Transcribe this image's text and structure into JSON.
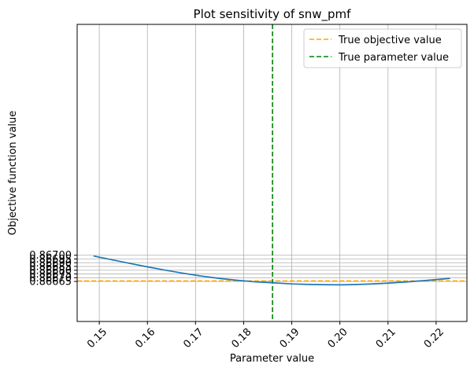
{
  "chart_data": {
    "type": "line",
    "title": "Plot sensitivity of snw_pmf",
    "xlabel": "Parameter value",
    "ylabel": "Objective function value",
    "xlim": [
      0.1454,
      0.2264
    ],
    "ylim": [
      0.866115,
      0.870085
    ],
    "grid": true,
    "legend_position": "upper-right",
    "x_ticks": [
      0.15,
      0.16,
      0.17,
      0.18,
      0.19,
      0.2,
      0.21,
      0.22
    ],
    "x_tick_labels": [
      "0.15",
      "0.16",
      "0.17",
      "0.18",
      "0.19",
      "0.20",
      "0.21",
      "0.22"
    ],
    "y_ticks": [
      0.86665,
      0.8667,
      0.86675,
      0.8668,
      0.86685,
      0.8669,
      0.86695,
      0.867
    ],
    "y_tick_labels": [
      "0.86665",
      "0.86670",
      "0.86675",
      "0.86680",
      "0.86685",
      "0.86690",
      "0.86695",
      "0.86700"
    ],
    "series": [
      {
        "color": "#1f77b4",
        "style": "solid",
        "x": [
          0.1488,
          0.1525,
          0.1562,
          0.16,
          0.1638,
          0.1675,
          0.1712,
          0.175,
          0.1787,
          0.1824,
          0.186,
          0.19,
          0.1937,
          0.1975,
          0.2,
          0.2025,
          0.2062,
          0.21,
          0.2137,
          0.2175,
          0.2204,
          0.2229
        ],
        "y": [
          0.86699,
          0.866941,
          0.866893,
          0.866845,
          0.8668,
          0.866759,
          0.866722,
          0.86669,
          0.866665,
          0.866645,
          0.866632,
          0.866617,
          0.86661,
          0.866606,
          0.866605,
          0.866607,
          0.866615,
          0.866627,
          0.866643,
          0.866661,
          0.866677,
          0.866691
        ]
      }
    ],
    "reference_lines": [
      {
        "name": "True objective value",
        "orientation": "horizontal",
        "value": 0.866657,
        "color": "#ffa500",
        "style": "dashed"
      },
      {
        "name": "True parameter value",
        "orientation": "vertical",
        "value": 0.186,
        "color": "#008000",
        "style": "dashed"
      }
    ]
  }
}
